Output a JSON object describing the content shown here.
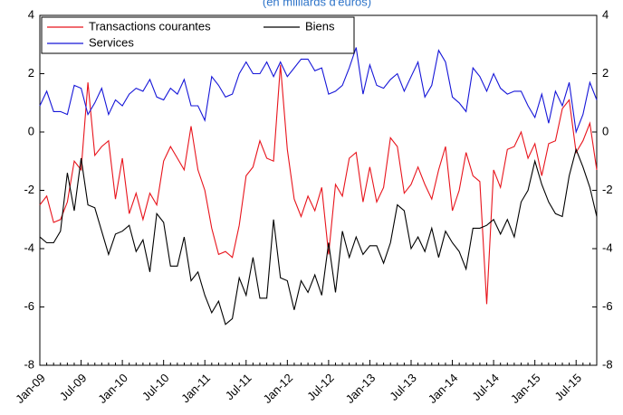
{
  "chart_data": {
    "type": "line",
    "title": "(en milliards d'euros)",
    "categories": [
      "Jan-09",
      null,
      null,
      null,
      null,
      null,
      "Jul-09",
      null,
      null,
      null,
      null,
      null,
      "Jan-10",
      null,
      null,
      null,
      null,
      null,
      "Jul-10",
      null,
      null,
      null,
      null,
      null,
      "Jan-11",
      null,
      null,
      null,
      null,
      null,
      "Jul-11",
      null,
      null,
      null,
      null,
      null,
      "Jan-12",
      null,
      null,
      null,
      null,
      null,
      "Jul-12",
      null,
      null,
      null,
      null,
      null,
      "Jan-13",
      null,
      null,
      null,
      null,
      null,
      "Jul-13",
      null,
      null,
      null,
      null,
      null,
      "Jan-14",
      null,
      null,
      null,
      null,
      null,
      "Jul-14",
      null,
      null,
      null,
      null,
      null,
      "Jan-15",
      null,
      null,
      null,
      null,
      null,
      "Jul-15",
      null,
      null,
      null
    ],
    "series": [
      {
        "name": "Transactions courantes",
        "color": "#e8141c",
        "values": [
          -2.5,
          -2.2,
          -3.1,
          -3.0,
          -2.4,
          -1.0,
          -1.3,
          1.7,
          -0.8,
          -0.5,
          -0.3,
          -2.3,
          -0.9,
          -2.8,
          -2.1,
          -3.0,
          -2.1,
          -2.5,
          -1.0,
          -0.5,
          -0.9,
          -1.3,
          0.2,
          -1.3,
          -2.0,
          -3.3,
          -4.2,
          -4.1,
          -4.3,
          -3.2,
          -1.5,
          -1.2,
          -0.3,
          -0.9,
          -1.0,
          2.3,
          -0.6,
          -2.3,
          -2.9,
          -2.2,
          -2.7,
          -1.9,
          -4.2,
          -1.8,
          -2.2,
          -0.9,
          -0.7,
          -2.4,
          -1.2,
          -2.4,
          -1.9,
          -0.2,
          -0.5,
          -2.1,
          -1.8,
          -1.2,
          -1.8,
          -2.3,
          -1.3,
          -0.5,
          -2.7,
          -2.0,
          -0.7,
          -1.5,
          -1.7,
          -5.9,
          -1.3,
          -1.9,
          -0.6,
          -0.5,
          0.0,
          -0.9,
          -0.4,
          -1.5,
          -0.4,
          -0.3,
          0.8,
          1.1,
          -0.7,
          -0.3,
          0.3,
          -1.3
        ]
      },
      {
        "name": "Biens",
        "color": "#000000",
        "values": [
          -3.6,
          -3.8,
          -3.8,
          -3.4,
          -1.4,
          -2.7,
          -0.9,
          -2.5,
          -2.6,
          -3.4,
          -4.2,
          -3.5,
          -3.4,
          -3.2,
          -4.1,
          -3.7,
          -4.8,
          -2.8,
          -3.1,
          -4.6,
          -4.6,
          -3.6,
          -5.1,
          -4.8,
          -5.6,
          -6.2,
          -5.8,
          -6.6,
          -6.4,
          -5.0,
          -5.6,
          -4.3,
          -5.7,
          -5.7,
          -3.0,
          -5.0,
          -5.1,
          -6.1,
          -5.1,
          -5.5,
          -4.9,
          -5.6,
          -3.8,
          -5.5,
          -3.4,
          -4.3,
          -3.6,
          -4.2,
          -3.9,
          -3.9,
          -4.5,
          -3.8,
          -2.5,
          -2.7,
          -4.0,
          -3.6,
          -4.1,
          -3.3,
          -4.3,
          -3.4,
          -3.8,
          -4.1,
          -4.7,
          -3.3,
          -3.3,
          -3.2,
          -3.0,
          -3.5,
          -3.0,
          -3.6,
          -2.4,
          -2.0,
          -1.0,
          -1.8,
          -2.4,
          -2.8,
          -2.9,
          -1.5,
          -0.6,
          -1.2,
          -1.9,
          -2.9
        ]
      },
      {
        "name": "Services",
        "color": "#1616d8",
        "values": [
          0.9,
          1.4,
          0.7,
          0.7,
          0.6,
          1.6,
          1.5,
          0.6,
          1.0,
          1.5,
          0.6,
          1.1,
          0.9,
          1.3,
          1.5,
          1.4,
          1.8,
          1.2,
          1.1,
          1.5,
          1.3,
          1.8,
          0.9,
          0.9,
          0.4,
          1.9,
          1.6,
          1.2,
          1.3,
          2.0,
          2.4,
          2.0,
          2.0,
          2.4,
          1.9,
          2.4,
          1.9,
          2.2,
          2.5,
          2.5,
          2.1,
          2.2,
          1.3,
          1.4,
          1.6,
          2.2,
          2.9,
          1.3,
          2.3,
          1.6,
          1.5,
          1.8,
          2.0,
          1.4,
          1.9,
          2.4,
          1.2,
          1.6,
          2.8,
          2.4,
          1.2,
          1.0,
          0.7,
          2.2,
          1.9,
          1.4,
          2.0,
          1.5,
          1.3,
          1.4,
          1.4,
          0.9,
          0.5,
          1.3,
          0.3,
          1.4,
          0.9,
          1.7,
          0.0,
          0.6,
          1.7,
          1.1
        ]
      }
    ],
    "ylim": [
      -8,
      4
    ],
    "yticks": [
      -8,
      -6,
      -4,
      -2,
      0,
      2,
      4
    ],
    "legend": "top-left"
  }
}
